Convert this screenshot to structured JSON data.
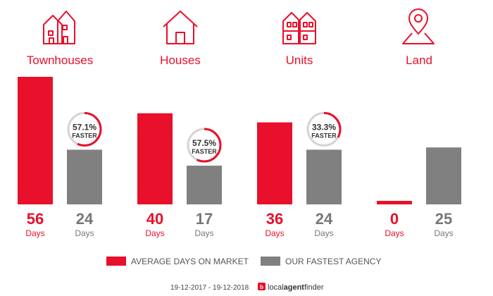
{
  "colors": {
    "accent": "#e8102a",
    "fastest": "#808080",
    "ring_track": "#d4d4d4",
    "value_text_gray": "#777777"
  },
  "chart_data": {
    "type": "bar",
    "categories": [
      "Townhouses",
      "Houses",
      "Units",
      "Land"
    ],
    "category_icons": [
      "townhouse-icon",
      "house-icon",
      "units-icon",
      "map-pin-icon"
    ],
    "series": [
      {
        "name": "AVERAGE DAYS ON MARKET",
        "values": [
          56,
          40,
          36,
          0
        ]
      },
      {
        "name": "OUR FASTEST AGENCY",
        "values": [
          24,
          17,
          24,
          25
        ]
      }
    ],
    "value_unit": "Days",
    "faster": [
      {
        "percent": "57.1%",
        "label": "FASTER"
      },
      {
        "percent": "57.5%",
        "label": "FASTER"
      },
      {
        "percent": "33.3%",
        "label": "FASTER"
      },
      null
    ],
    "ylim": [
      0,
      56
    ],
    "grid": false,
    "legend_position": "bottom"
  },
  "footer": {
    "date_range": "19-12-2017 - 19-12-2018",
    "brand_prefix": "local",
    "brand_middle": "agent",
    "brand_suffix": "finder"
  }
}
